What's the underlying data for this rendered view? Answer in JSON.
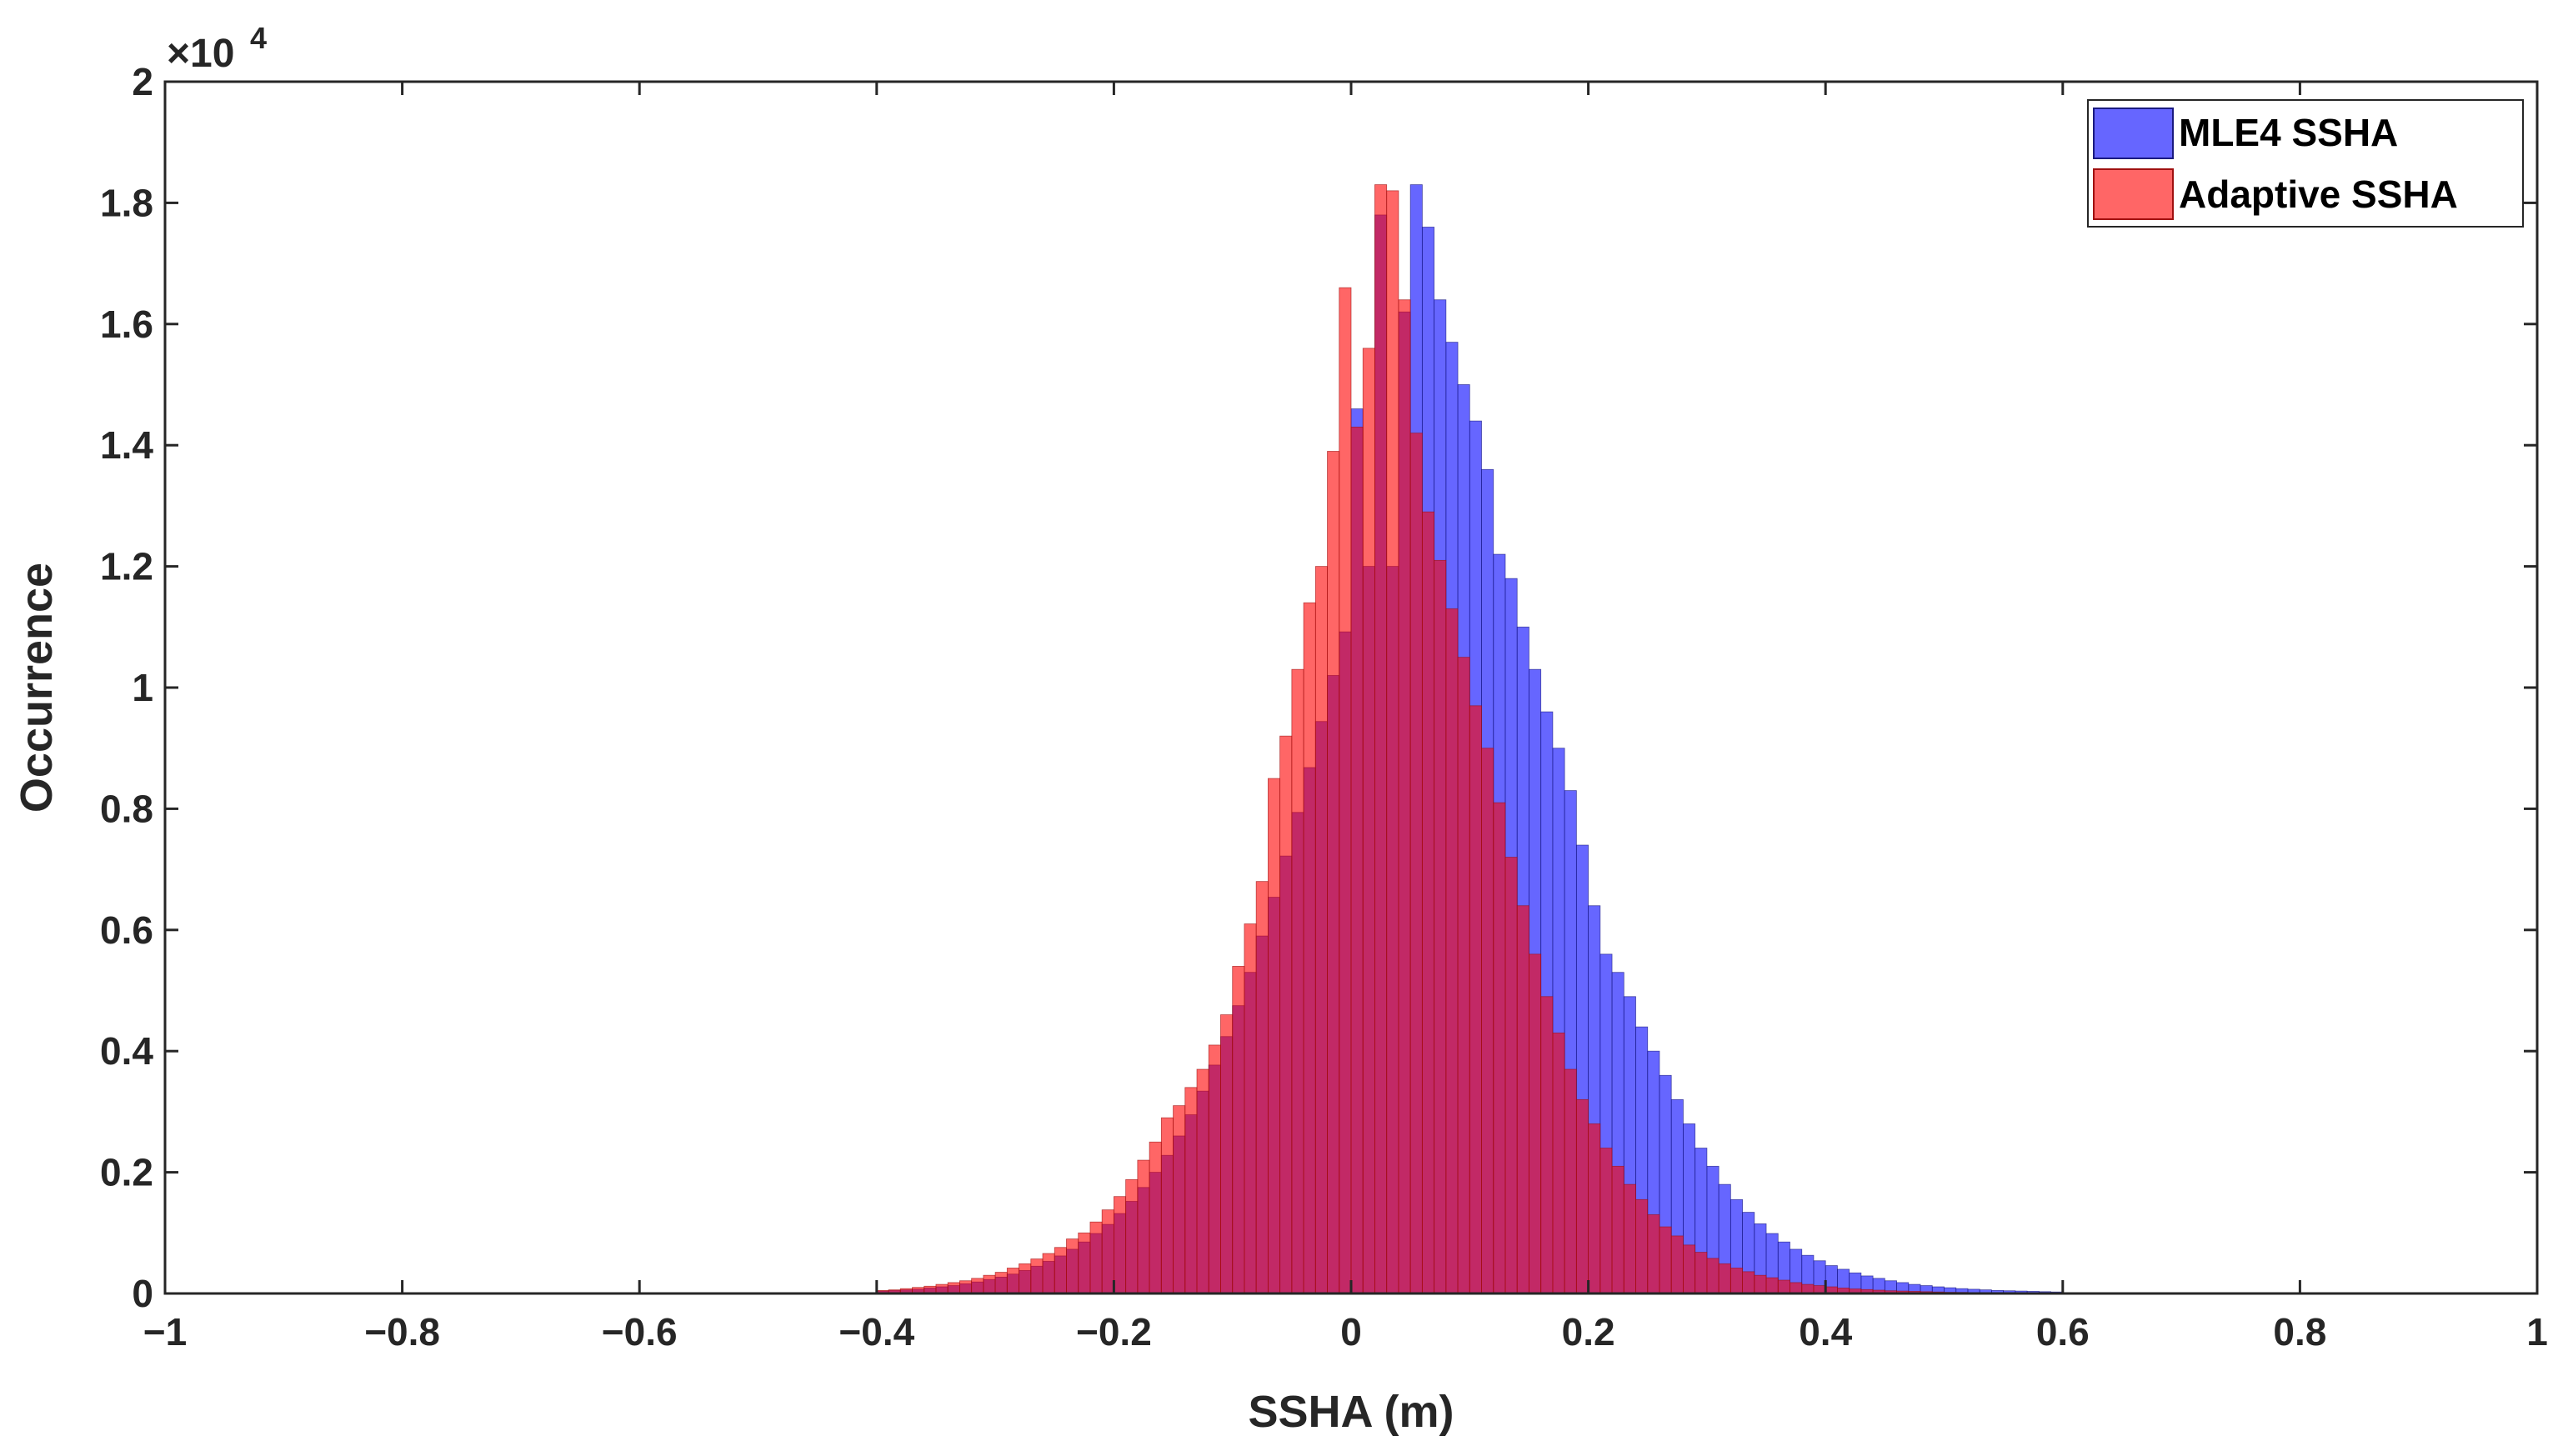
{
  "chart_data": {
    "type": "bar",
    "title": "",
    "xlabel": "SSHA (m)",
    "ylabel": "Occurrence",
    "xlim": [
      -1,
      1
    ],
    "ylim": [
      0,
      20000
    ],
    "y_exponent_label": "×10",
    "y_exponent_power": "4",
    "x_ticks": [
      -1,
      -0.8,
      -0.6,
      -0.4,
      -0.2,
      0,
      0.2,
      0.4,
      0.6,
      0.8,
      1
    ],
    "x_tick_labels": [
      "−1",
      "−0.8",
      "−0.6",
      "−0.4",
      "−0.2",
      "0",
      "0.2",
      "0.4",
      "0.6",
      "0.8",
      "1"
    ],
    "y_ticks": [
      0,
      2000,
      4000,
      6000,
      8000,
      10000,
      12000,
      14000,
      16000,
      18000,
      20000
    ],
    "y_tick_labels": [
      "0",
      "0.2",
      "0.4",
      "0.6",
      "0.8",
      "1",
      "1.2",
      "1.4",
      "1.6",
      "1.8",
      "2"
    ],
    "bin_width": 0.01,
    "grid": false,
    "legend_position": "top-right",
    "series": [
      {
        "name": "MLE4 SSHA",
        "color": "#0000ff",
        "opacity": 0.6,
        "bin_centers": [
          -0.395,
          -0.385,
          -0.375,
          -0.365,
          -0.355,
          -0.345,
          -0.335,
          -0.325,
          -0.315,
          -0.305,
          -0.295,
          -0.285,
          -0.275,
          -0.265,
          -0.255,
          -0.245,
          -0.235,
          -0.225,
          -0.215,
          -0.205,
          -0.195,
          -0.185,
          -0.175,
          -0.165,
          -0.155,
          -0.145,
          -0.135,
          -0.125,
          -0.115,
          -0.105,
          -0.095,
          -0.085,
          -0.075,
          -0.065,
          -0.055,
          -0.045,
          -0.035,
          -0.025,
          -0.015,
          -0.005,
          0.005,
          0.015,
          0.025,
          0.035,
          0.045,
          0.055,
          0.065,
          0.075,
          0.085,
          0.095,
          0.105,
          0.115,
          0.125,
          0.135,
          0.145,
          0.155,
          0.165,
          0.175,
          0.185,
          0.195,
          0.205,
          0.215,
          0.225,
          0.235,
          0.245,
          0.255,
          0.265,
          0.275,
          0.285,
          0.295,
          0.305,
          0.315,
          0.325,
          0.335,
          0.345,
          0.355,
          0.365,
          0.375,
          0.385,
          0.395,
          0.405,
          0.415,
          0.425,
          0.435,
          0.445,
          0.455,
          0.465,
          0.475,
          0.485,
          0.495,
          0.505,
          0.515,
          0.525,
          0.535,
          0.545,
          0.555,
          0.565,
          0.575,
          0.585,
          0.595
        ],
        "values": [
          40,
          50,
          60,
          70,
          90,
          110,
          130,
          160,
          190,
          230,
          270,
          320,
          380,
          450,
          530,
          620,
          730,
          850,
          990,
          1140,
          1320,
          1520,
          1750,
          2000,
          2280,
          2600,
          2950,
          3340,
          3770,
          4240,
          4750,
          5300,
          5900,
          6540,
          7220,
          7940,
          8680,
          9440,
          10200,
          10920,
          14600,
          12000,
          17800,
          12000,
          16200,
          18300,
          17600,
          16400,
          15700,
          15000,
          14400,
          13600,
          12200,
          11800,
          11000,
          10300,
          9600,
          9000,
          8300,
          7400,
          6400,
          5600,
          5300,
          4900,
          4400,
          4000,
          3600,
          3200,
          2800,
          2400,
          2100,
          1800,
          1550,
          1340,
          1150,
          990,
          850,
          730,
          630,
          540,
          460,
          400,
          340,
          290,
          250,
          210,
          180,
          150,
          130,
          110,
          95,
          80,
          70,
          60,
          50,
          45,
          40,
          35,
          30,
          25
        ]
      },
      {
        "name": "Adaptive SSHA",
        "color": "#ff0000",
        "opacity": 0.6,
        "bin_centers": [
          -0.395,
          -0.385,
          -0.375,
          -0.365,
          -0.355,
          -0.345,
          -0.335,
          -0.325,
          -0.315,
          -0.305,
          -0.295,
          -0.285,
          -0.275,
          -0.265,
          -0.255,
          -0.245,
          -0.235,
          -0.225,
          -0.215,
          -0.205,
          -0.195,
          -0.185,
          -0.175,
          -0.165,
          -0.155,
          -0.145,
          -0.135,
          -0.125,
          -0.115,
          -0.105,
          -0.095,
          -0.085,
          -0.075,
          -0.065,
          -0.055,
          -0.045,
          -0.035,
          -0.025,
          -0.015,
          -0.005,
          0.005,
          0.015,
          0.025,
          0.035,
          0.045,
          0.055,
          0.065,
          0.075,
          0.085,
          0.095,
          0.105,
          0.115,
          0.125,
          0.135,
          0.145,
          0.155,
          0.165,
          0.175,
          0.185,
          0.195,
          0.205,
          0.215,
          0.225,
          0.235,
          0.245,
          0.255,
          0.265,
          0.275,
          0.285,
          0.295,
          0.305,
          0.315,
          0.325,
          0.335,
          0.345,
          0.355,
          0.365,
          0.375,
          0.385,
          0.395,
          0.405,
          0.415,
          0.425,
          0.435,
          0.445,
          0.455,
          0.465,
          0.475,
          0.485,
          0.495,
          0.505,
          0.515,
          0.525,
          0.535,
          0.545,
          0.555,
          0.565,
          0.575,
          0.585,
          0.595
        ],
        "values": [
          50,
          60,
          80,
          100,
          120,
          150,
          180,
          210,
          250,
          300,
          350,
          420,
          490,
          570,
          660,
          760,
          900,
          1000,
          1180,
          1380,
          1600,
          1880,
          2200,
          2500,
          2900,
          3100,
          3400,
          3700,
          4100,
          4600,
          5400,
          6100,
          6800,
          8500,
          9200,
          10300,
          11400,
          12000,
          13900,
          16600,
          14300,
          15600,
          18300,
          18200,
          16400,
          14200,
          12900,
          12100,
          11300,
          10500,
          9700,
          9000,
          8100,
          7200,
          6400,
          5600,
          4900,
          4300,
          3700,
          3200,
          2800,
          2400,
          2100,
          1800,
          1550,
          1300,
          1100,
          950,
          800,
          680,
          580,
          490,
          420,
          360,
          300,
          260,
          220,
          180,
          150,
          130,
          110,
          90,
          75,
          65,
          55,
          45,
          40,
          35,
          30,
          25,
          20,
          18,
          15,
          12,
          10,
          9,
          8,
          7,
          6,
          5
        ]
      }
    ]
  },
  "legend": {
    "items": [
      {
        "label": "MLE4 SSHA",
        "color": "#0000ff"
      },
      {
        "label": "Adaptive SSHA",
        "color": "#ff0000"
      }
    ]
  }
}
